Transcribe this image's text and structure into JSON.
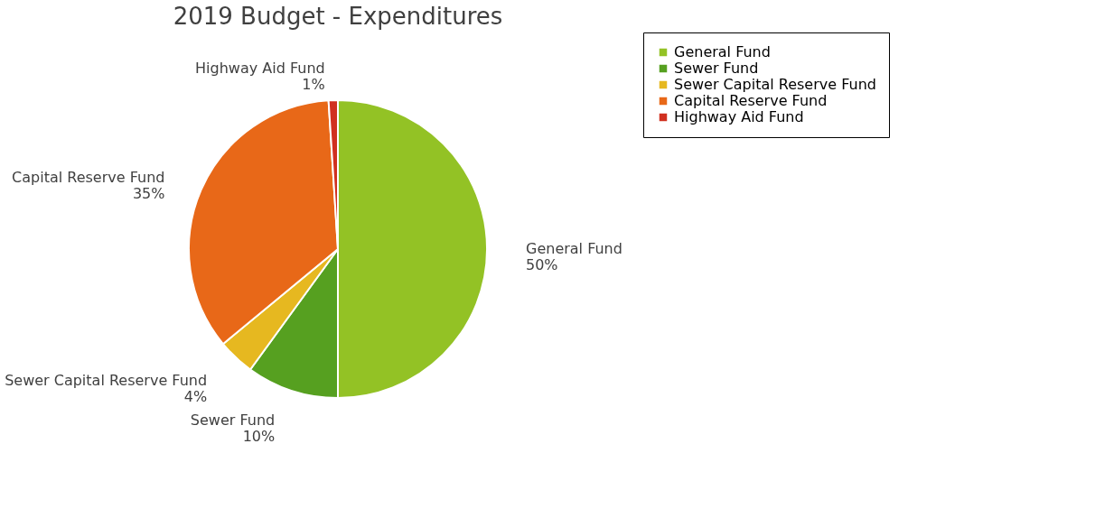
{
  "chart_data": {
    "type": "pie",
    "title": "2019 Budget - Expenditures",
    "categories": [
      "General Fund",
      "Sewer Fund",
      "Sewer Capital Reserve Fund",
      "Capital Reserve Fund",
      "Highway Aid Fund"
    ],
    "values": [
      50,
      10,
      4,
      35,
      1
    ],
    "colors": [
      "#93c225",
      "#56a020",
      "#e6b820",
      "#e86818",
      "#d03020"
    ],
    "value_labels": [
      "50%",
      "10%",
      "4%",
      "35%",
      "1%"
    ],
    "legend": "right"
  }
}
